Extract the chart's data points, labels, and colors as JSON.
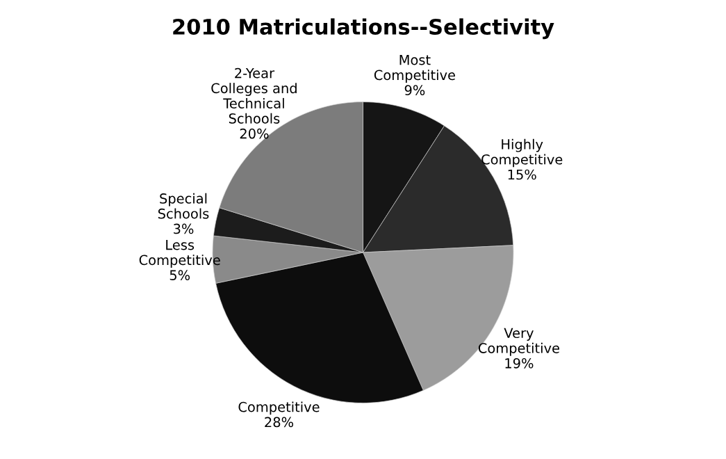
{
  "chart_data": {
    "type": "pie",
    "title": "2010 Matriculations--Selectivity",
    "categories": [
      "Most Competitive",
      "Highly Competitive",
      "Very Competitive",
      "Competitive",
      "Less Competitive",
      "Special Schools",
      "2-Year Colleges and Technical Schools"
    ],
    "values": [
      9,
      15,
      19,
      28,
      5,
      3,
      20
    ],
    "value_labels": [
      "9%",
      "15%",
      "19%",
      "28%",
      "5%",
      "3%",
      "20%"
    ],
    "colors": [
      "#151515",
      "#2b2b2b",
      "#9c9c9c",
      "#0d0d0d",
      "#8a8a8a",
      "#1c1c1c",
      "#7c7c7c"
    ],
    "legend": false
  }
}
